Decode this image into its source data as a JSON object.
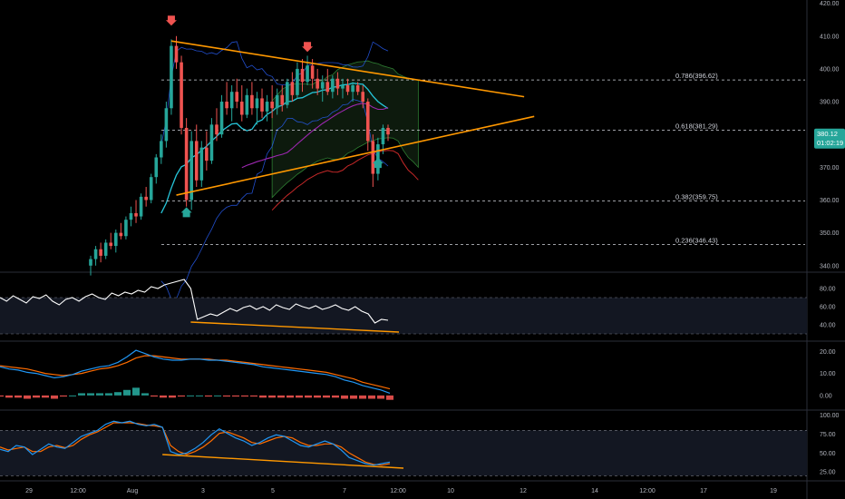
{
  "chart_data": {
    "type": "candlestick",
    "colors": {
      "up": "#26a69a",
      "down": "#ef5350",
      "trendline": "#ff9800",
      "bollinger": "#2962ff",
      "ma_short": "#26c6da",
      "ma_long": "#9c27b0",
      "cloud_fill": "#0d1a0d",
      "cloud_edge": "#2e7d32",
      "lagging": "#c62828",
      "rsi": "#ffffff",
      "macd": "#2196f3",
      "signal": "#ff6d00",
      "stoch_k": "#2196f3",
      "stoch_d": "#ff6d00",
      "price_badge": "#26a69a"
    },
    "price_axis": {
      "ylim": [
        338,
        421
      ],
      "ticks": [
        "420.00",
        "410.00",
        "400.00",
        "390.00",
        "380.00",
        "370.00",
        "360.00",
        "350.00",
        "340.00"
      ]
    },
    "fib_levels": [
      {
        "label": "0.786(396.62)",
        "value": 396.62
      },
      {
        "label": "0.618(381.29)",
        "value": 381.29
      },
      {
        "label": "0.382(359.75)",
        "value": 359.75
      },
      {
        "label": "0.236(346.43)",
        "value": 346.43
      }
    ],
    "last_price": {
      "value": "380.12",
      "countdown": "01:02:19"
    },
    "candles": [
      [
        340,
        343,
        337,
        342
      ],
      [
        342,
        346,
        340,
        345
      ],
      [
        345,
        347,
        341,
        343
      ],
      [
        343,
        348,
        342,
        347
      ],
      [
        347,
        350,
        345,
        346
      ],
      [
        346,
        351,
        344,
        350
      ],
      [
        350,
        353,
        348,
        349
      ],
      [
        349,
        355,
        348,
        354
      ],
      [
        354,
        358,
        352,
        356
      ],
      [
        356,
        360,
        353,
        355
      ],
      [
        355,
        362,
        354,
        361
      ],
      [
        361,
        364,
        358,
        360
      ],
      [
        360,
        368,
        359,
        367
      ],
      [
        367,
        374,
        365,
        373
      ],
      [
        373,
        380,
        371,
        378
      ],
      [
        378,
        390,
        376,
        388
      ],
      [
        388,
        409,
        386,
        407
      ],
      [
        407,
        410,
        400,
        402
      ],
      [
        402,
        404,
        380,
        382
      ],
      [
        382,
        385,
        358,
        360
      ],
      [
        360,
        381,
        357,
        378
      ],
      [
        378,
        383,
        364,
        366
      ],
      [
        366,
        378,
        364,
        376
      ],
      [
        376,
        381,
        369,
        372
      ],
      [
        372,
        385,
        371,
        383
      ],
      [
        383,
        388,
        378,
        380
      ],
      [
        380,
        392,
        379,
        390
      ],
      [
        390,
        396,
        386,
        388
      ],
      [
        388,
        395,
        384,
        393
      ],
      [
        393,
        397,
        388,
        390
      ],
      [
        390,
        395,
        384,
        386
      ],
      [
        386,
        394,
        385,
        392
      ],
      [
        392,
        396,
        386,
        388
      ],
      [
        388,
        393,
        383,
        391
      ],
      [
        391,
        394,
        385,
        387
      ],
      [
        387,
        392,
        384,
        390
      ],
      [
        390,
        395,
        385,
        388
      ],
      [
        388,
        394,
        386,
        392
      ],
      [
        392,
        395,
        387,
        389
      ],
      [
        389,
        397,
        388,
        396
      ],
      [
        396,
        399,
        390,
        392
      ],
      [
        392,
        402,
        391,
        400
      ],
      [
        400,
        403,
        393,
        396
      ],
      [
        396,
        404,
        395,
        401
      ],
      [
        401,
        403,
        394,
        397
      ],
      [
        397,
        400,
        392,
        394
      ],
      [
        394,
        398,
        390,
        396
      ],
      [
        396,
        400,
        392,
        393
      ],
      [
        393,
        398,
        391,
        397
      ],
      [
        397,
        399,
        392,
        394
      ],
      [
        394,
        397,
        391,
        395
      ],
      [
        395,
        397,
        392,
        393
      ],
      [
        393,
        396,
        390,
        395
      ],
      [
        395,
        396,
        392,
        393
      ],
      [
        393,
        395,
        388,
        390
      ],
      [
        390,
        391,
        375,
        378
      ],
      [
        378,
        380,
        364,
        368
      ],
      [
        368,
        379,
        366,
        377
      ],
      [
        377,
        383,
        374,
        382
      ],
      [
        382,
        383,
        378,
        380
      ]
    ],
    "rsi": {
      "ticks": [
        "80.00",
        "60.00",
        "40.00"
      ],
      "ylim": [
        26,
        94
      ],
      "values": [
        70,
        66,
        72,
        68,
        64,
        71,
        69,
        73,
        66,
        62,
        68,
        70,
        66,
        71,
        74,
        70,
        68,
        75,
        72,
        76,
        74,
        78,
        76,
        82,
        80,
        84,
        86,
        88,
        90,
        80,
        46,
        49,
        52,
        50,
        54,
        58,
        55,
        59,
        61,
        57,
        60,
        56,
        62,
        59,
        57,
        63,
        60,
        58,
        61,
        57,
        59,
        62,
        58,
        56,
        60,
        55,
        52,
        42,
        46,
        45
      ]
    },
    "macd": {
      "ticks": [
        "20.00",
        "10.00",
        "0.00"
      ],
      "ylim": [
        -5,
        23
      ],
      "macd": [
        13,
        12,
        11.5,
        10.5,
        10,
        9,
        8,
        8.5,
        9.5,
        11,
        12,
        13,
        13.5,
        15,
        17.5,
        20.5,
        19,
        17.5,
        16.5,
        16,
        16,
        16.5,
        16.5,
        16,
        16,
        15.5,
        15,
        14.5,
        14,
        13,
        12.5,
        12,
        11.5,
        11,
        10.5,
        10,
        9.5,
        8.5,
        7,
        6,
        4.5,
        3.5,
        2.5,
        1
      ],
      "signal": [
        13.5,
        13,
        12.5,
        12,
        11,
        10,
        9.5,
        9,
        9.5,
        10,
        11,
        12,
        12.5,
        13.5,
        15,
        17,
        18,
        18,
        17.5,
        17,
        16.5,
        16.5,
        16.5,
        16.5,
        16,
        16,
        15.5,
        15,
        14.5,
        14,
        13.5,
        13,
        12.5,
        12,
        11.5,
        11,
        10.5,
        9.5,
        8.5,
        7.5,
        6,
        5,
        4,
        3
      ],
      "hist": [
        -0.5,
        -1,
        -1,
        -1.5,
        -1,
        -1,
        -1.5,
        -0.5,
        0,
        1,
        1,
        1,
        1,
        1.5,
        2.5,
        3.5,
        1,
        -0.5,
        -1,
        -1,
        -0.5,
        0,
        0,
        -0.5,
        0,
        -0.5,
        -0.5,
        -0.5,
        -0.5,
        -1,
        -1,
        -1,
        -1,
        -1,
        -1,
        -1,
        -1,
        -1,
        -1.5,
        -1.5,
        -1.5,
        -1.5,
        -1.5,
        -2
      ]
    },
    "stoch": {
      "ticks": [
        "100.00",
        "75.00",
        "50.00",
        "25.00"
      ],
      "ylim": [
        18,
        102
      ],
      "k": [
        55,
        52,
        60,
        58,
        48,
        55,
        62,
        58,
        56,
        64,
        72,
        76,
        80,
        88,
        92,
        90,
        92,
        88,
        86,
        88,
        84,
        52,
        48,
        50,
        56,
        64,
        74,
        82,
        76,
        70,
        66,
        60,
        64,
        70,
        74,
        72,
        66,
        60,
        58,
        62,
        66,
        62,
        54,
        44,
        40,
        36,
        34,
        36,
        38
      ],
      "d": [
        58,
        54,
        56,
        58,
        52,
        52,
        58,
        60,
        57,
        60,
        68,
        74,
        78,
        84,
        90,
        90,
        90,
        89,
        87,
        86,
        84,
        60,
        52,
        48,
        52,
        58,
        66,
        76,
        78,
        74,
        70,
        64,
        62,
        66,
        70,
        72,
        70,
        64,
        60,
        60,
        62,
        62,
        58,
        50,
        44,
        38,
        35,
        34,
        36
      ]
    },
    "x_ticks": [
      "29",
      "12:00",
      "Aug",
      "3",
      "5",
      "7",
      "12:00",
      "10",
      "12",
      "14",
      "12:00",
      "17",
      "19"
    ]
  }
}
